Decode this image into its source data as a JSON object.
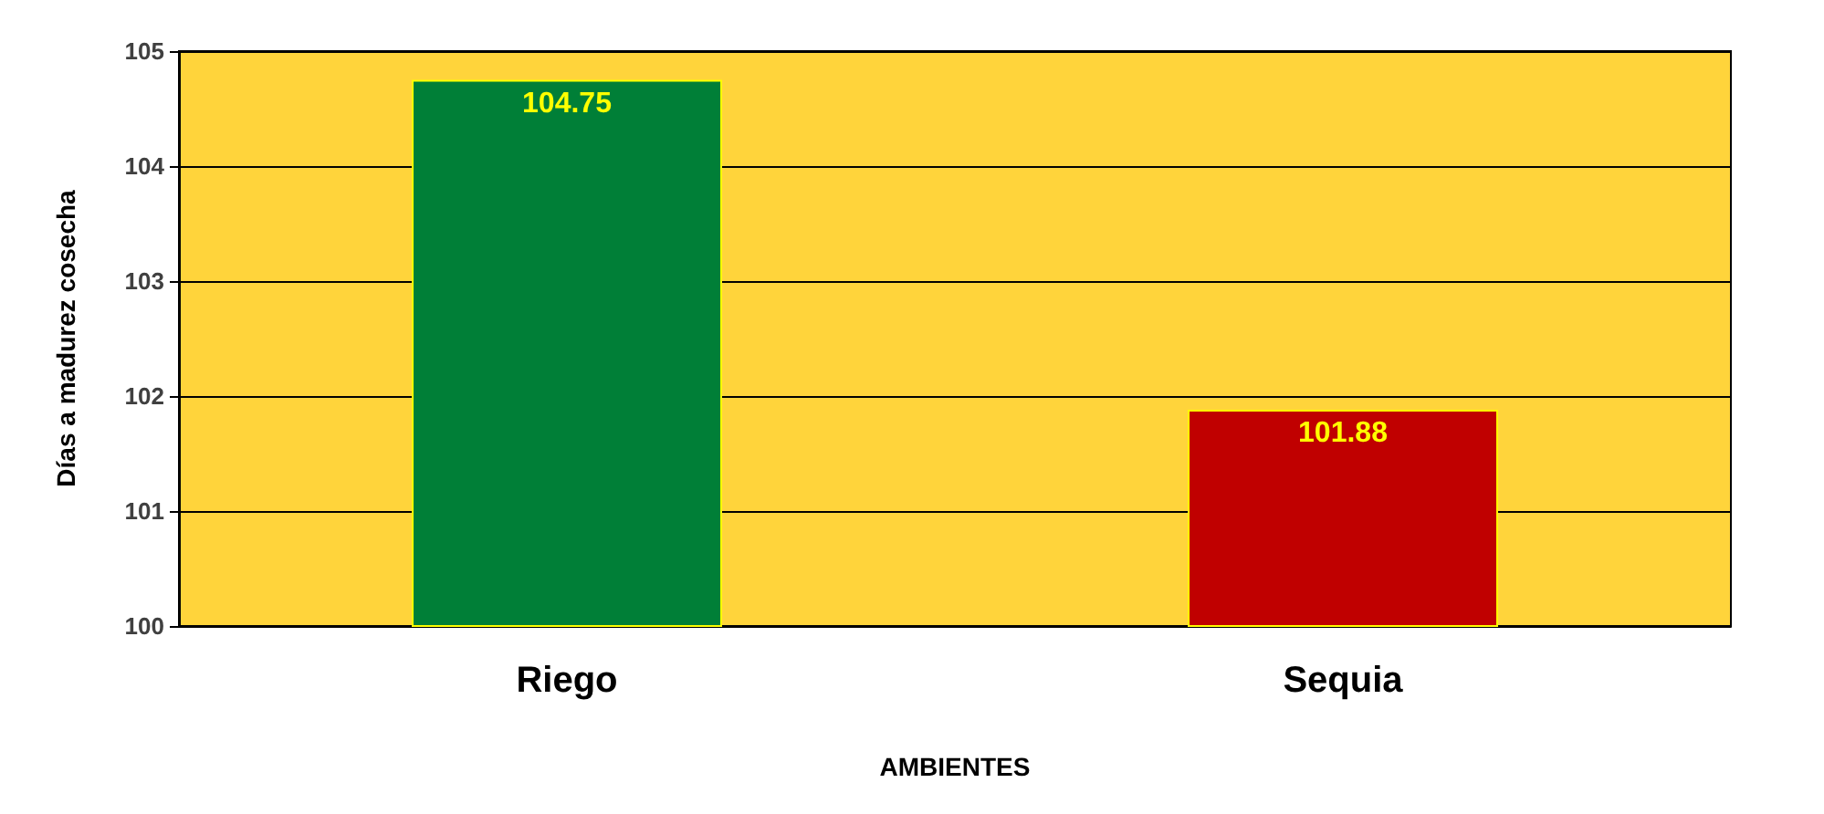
{
  "chart_data": {
    "type": "bar",
    "xlabel": "AMBIENTES",
    "ylabel": "Días a madurez cosecha",
    "categories": [
      "Riego",
      "Sequia"
    ],
    "values": [
      104.75,
      101.88
    ],
    "colors": [
      "#007f37",
      "#c00000"
    ],
    "ylim": [
      100,
      105
    ],
    "yticks": [
      100,
      101,
      102,
      103,
      104,
      105
    ],
    "grid": "y",
    "data_labels": true
  }
}
